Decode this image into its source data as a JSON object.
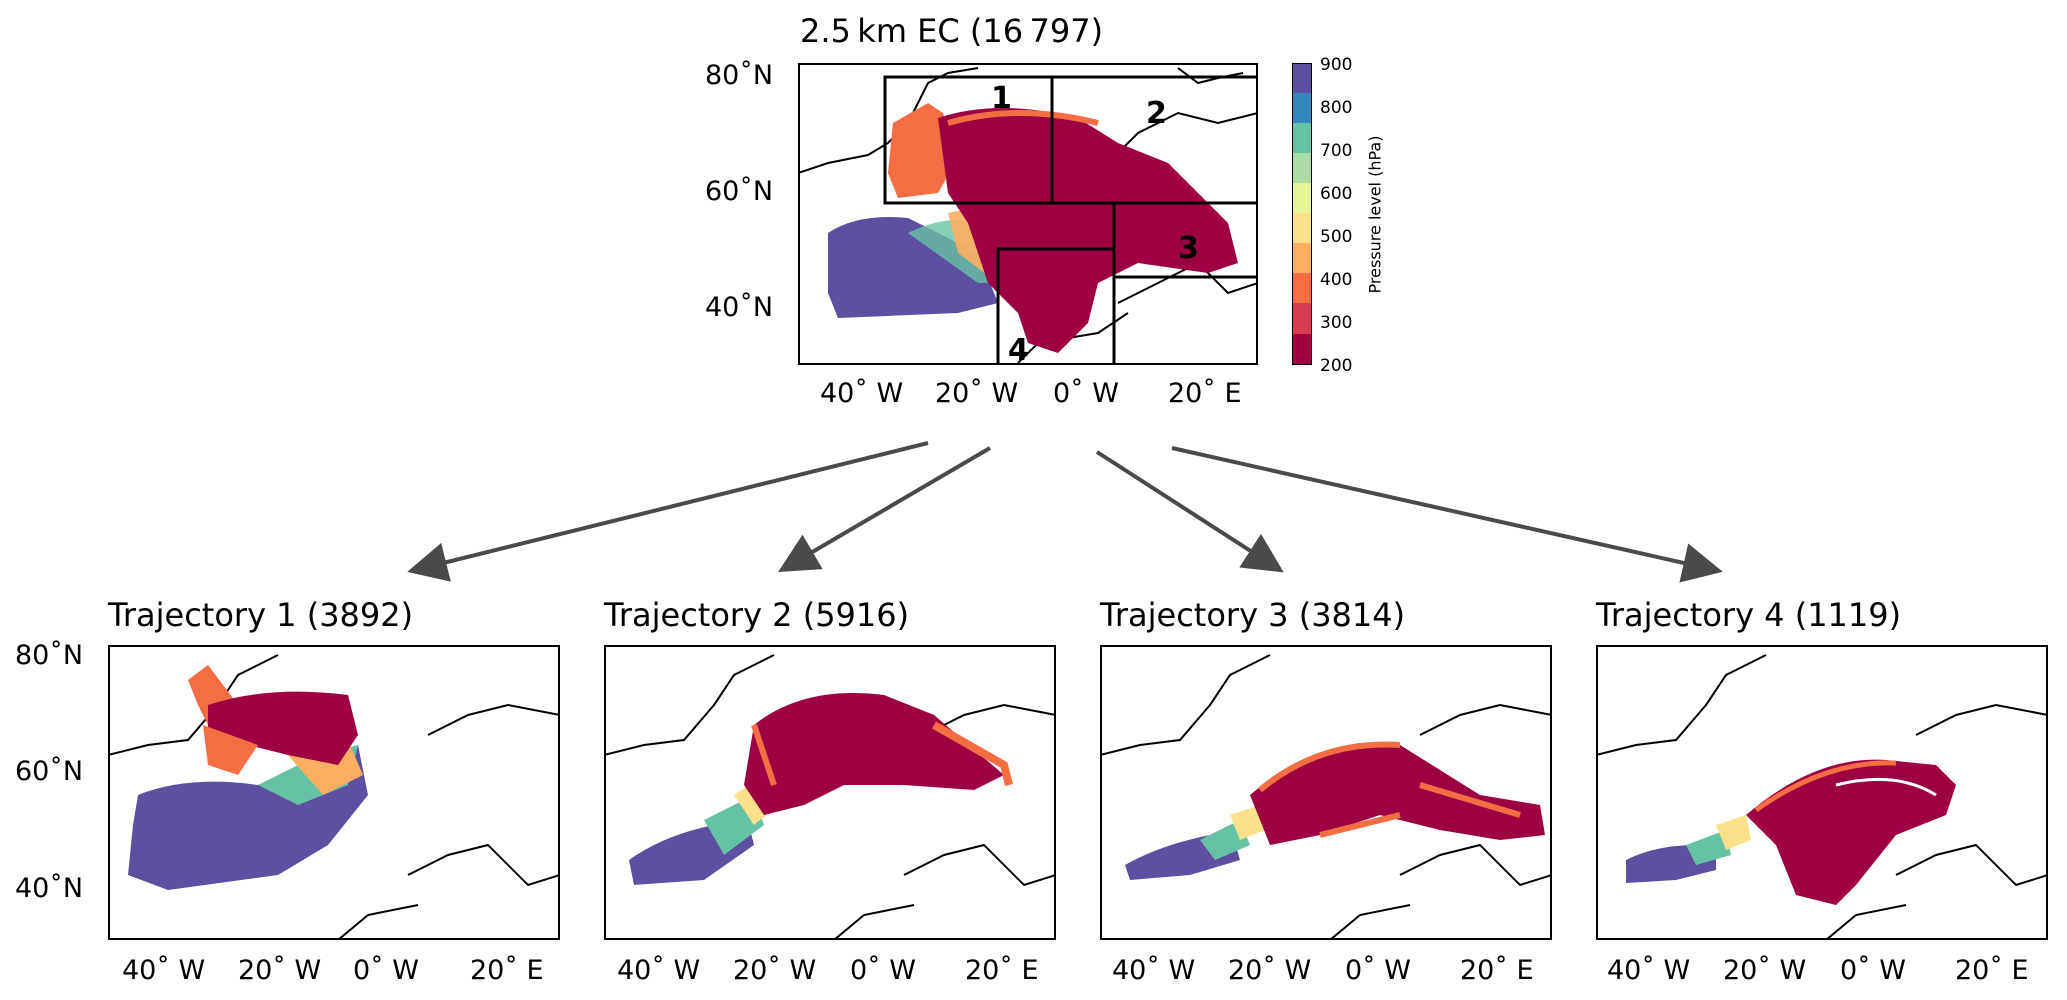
{
  "figure": {
    "main": {
      "title": "2.5 km EC (16 797)",
      "lat_labels": [
        "80˚N",
        "60˚N",
        "40˚N"
      ],
      "lon_labels": [
        "40˚ W",
        "20˚ W",
        "0˚ W",
        "20˚ E"
      ],
      "region_labels": [
        "1",
        "2",
        "3",
        "4"
      ]
    },
    "colorbar": {
      "label": "Pressure level (hPa)",
      "ticks": [
        "900",
        "800",
        "700",
        "600",
        "500",
        "400",
        "300",
        "200"
      ],
      "colors": [
        "#5e4fa2",
        "#3288bd",
        "#66c2a5",
        "#abdda4",
        "#e6f598",
        "#fee08b",
        "#fdae61",
        "#f46d43",
        "#d53e4f",
        "#9e0142"
      ]
    },
    "panels": [
      {
        "title": "Trajectory 1 (3892)"
      },
      {
        "title": "Trajectory 2 (5916)"
      },
      {
        "title": "Trajectory 3 (3814)"
      },
      {
        "title": "Trajectory 4 (1119)"
      }
    ],
    "small_lat_labels": [
      "80˚N",
      "60˚N",
      "40˚N"
    ],
    "small_lon_labels": [
      "40˚ W",
      "20˚ W",
      "0˚ W",
      "20˚ E"
    ]
  }
}
